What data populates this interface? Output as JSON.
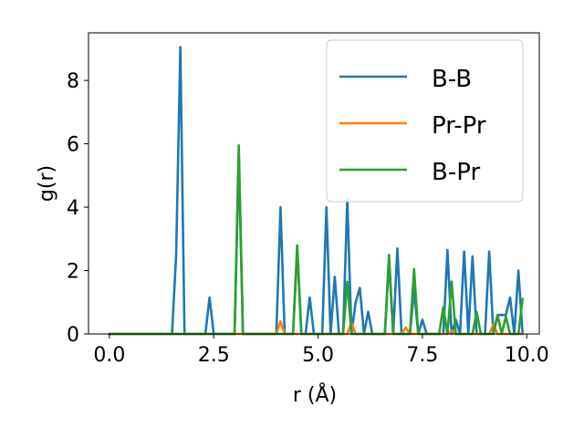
{
  "chart_data": {
    "type": "line",
    "xlabel": "r (Å)",
    "ylabel": "g(r)",
    "xlim": [
      -0.5,
      10.3
    ],
    "ylim": [
      0,
      9.5
    ],
    "xticks": [
      0.0,
      2.5,
      5.0,
      7.5,
      10.0
    ],
    "xtick_labels": [
      "0.0",
      "2.5",
      "5.0",
      "7.5",
      "10.0"
    ],
    "yticks": [
      0,
      2,
      4,
      6,
      8
    ],
    "ytick_labels": [
      "0",
      "2",
      "4",
      "6",
      "8"
    ],
    "grid": false,
    "legend_position": "top-right",
    "x": [
      0.0,
      0.1,
      0.2,
      0.3,
      0.4,
      0.5,
      0.6,
      0.7,
      0.8,
      0.9,
      1.0,
      1.1,
      1.2,
      1.3,
      1.4,
      1.5,
      1.6,
      1.7,
      1.8,
      1.9,
      2.0,
      2.1,
      2.2,
      2.3,
      2.4,
      2.5,
      2.6,
      2.7,
      2.8,
      2.9,
      3.0,
      3.1,
      3.2,
      3.3,
      3.4,
      3.5,
      3.6,
      3.7,
      3.8,
      3.9,
      4.0,
      4.1,
      4.2,
      4.3,
      4.4,
      4.5,
      4.6,
      4.7,
      4.8,
      4.9,
      5.0,
      5.1,
      5.2,
      5.3,
      5.4,
      5.5,
      5.6,
      5.7,
      5.8,
      5.9,
      6.0,
      6.1,
      6.2,
      6.3,
      6.4,
      6.5,
      6.6,
      6.7,
      6.8,
      6.9,
      7.0,
      7.1,
      7.2,
      7.3,
      7.4,
      7.5,
      7.6,
      7.7,
      7.8,
      7.9,
      8.0,
      8.1,
      8.2,
      8.3,
      8.4,
      8.5,
      8.6,
      8.7,
      8.8,
      8.9,
      9.0,
      9.1,
      9.2,
      9.3,
      9.4,
      9.5,
      9.6,
      9.7,
      9.8,
      9.9
    ],
    "series": [
      {
        "name": "B-B",
        "color": "#1f77b4",
        "values": [
          0,
          0,
          0,
          0,
          0,
          0,
          0,
          0,
          0,
          0,
          0,
          0,
          0,
          0,
          0,
          0,
          2.5,
          9.05,
          0,
          0,
          0,
          0,
          0,
          0,
          1.15,
          0,
          0,
          0,
          0,
          0,
          0,
          5.6,
          0,
          0,
          0,
          0,
          0,
          0,
          0,
          0,
          0,
          4.0,
          0,
          0,
          0,
          2.65,
          0,
          0,
          1.15,
          0,
          0,
          0,
          4.0,
          0,
          1.8,
          0,
          0,
          4.25,
          0,
          1.0,
          1.45,
          0,
          0.7,
          0,
          0,
          0,
          0,
          2.3,
          0,
          2.7,
          0,
          0,
          0,
          1.4,
          0,
          0.45,
          0,
          0,
          0,
          0,
          0,
          2.65,
          0,
          0.45,
          0,
          2.6,
          0,
          2.45,
          0,
          0,
          0,
          2.6,
          0,
          0.6,
          0.6,
          0.6,
          1.15,
          0,
          2.0,
          0
        ]
      },
      {
        "name": "Pr-Pr",
        "color": "#ff7f0e",
        "values": [
          0,
          0,
          0,
          0,
          0,
          0,
          0,
          0,
          0,
          0,
          0,
          0,
          0,
          0,
          0,
          0,
          0,
          0,
          0,
          0,
          0,
          0,
          0,
          0,
          0,
          0,
          0,
          0,
          0,
          0,
          0,
          0,
          0,
          0,
          0,
          0,
          0,
          0,
          0,
          0,
          0,
          0.4,
          0,
          0,
          0,
          0,
          0,
          0,
          0,
          0,
          0,
          0,
          0,
          0,
          0,
          0,
          0,
          0,
          0.35,
          0,
          0,
          0,
          0,
          0,
          0,
          0,
          0,
          0,
          0,
          0,
          0,
          0.2,
          0,
          0,
          0,
          0,
          0,
          0,
          0,
          0,
          0,
          0,
          0.1,
          0,
          0,
          0,
          0,
          0,
          0,
          0,
          0,
          0,
          0.3,
          0,
          0,
          0,
          0,
          0,
          0,
          0
        ]
      },
      {
        "name": "B-Pr",
        "color": "#2ca02c",
        "values": [
          0,
          0,
          0,
          0,
          0,
          0,
          0,
          0,
          0,
          0,
          0,
          0,
          0,
          0,
          0,
          0,
          0,
          0,
          0,
          0,
          0,
          0,
          0,
          0,
          0,
          0,
          0,
          0,
          0,
          0,
          0,
          5.95,
          0,
          0,
          0,
          0,
          0,
          0,
          0,
          0,
          0,
          0,
          0,
          0,
          0,
          2.8,
          0,
          0,
          0,
          0,
          0,
          0,
          0,
          0,
          0,
          0,
          0,
          1.65,
          0,
          0,
          0,
          0,
          0,
          0,
          0,
          0,
          0,
          2.5,
          0,
          0,
          0,
          0,
          0,
          2.05,
          0,
          0,
          0,
          0,
          0,
          0,
          0.85,
          0,
          1.65,
          0,
          0,
          0,
          0,
          0,
          0.7,
          0,
          0,
          0,
          0,
          0.6,
          0,
          0.55,
          0,
          0,
          0,
          1.1
        ]
      }
    ]
  }
}
